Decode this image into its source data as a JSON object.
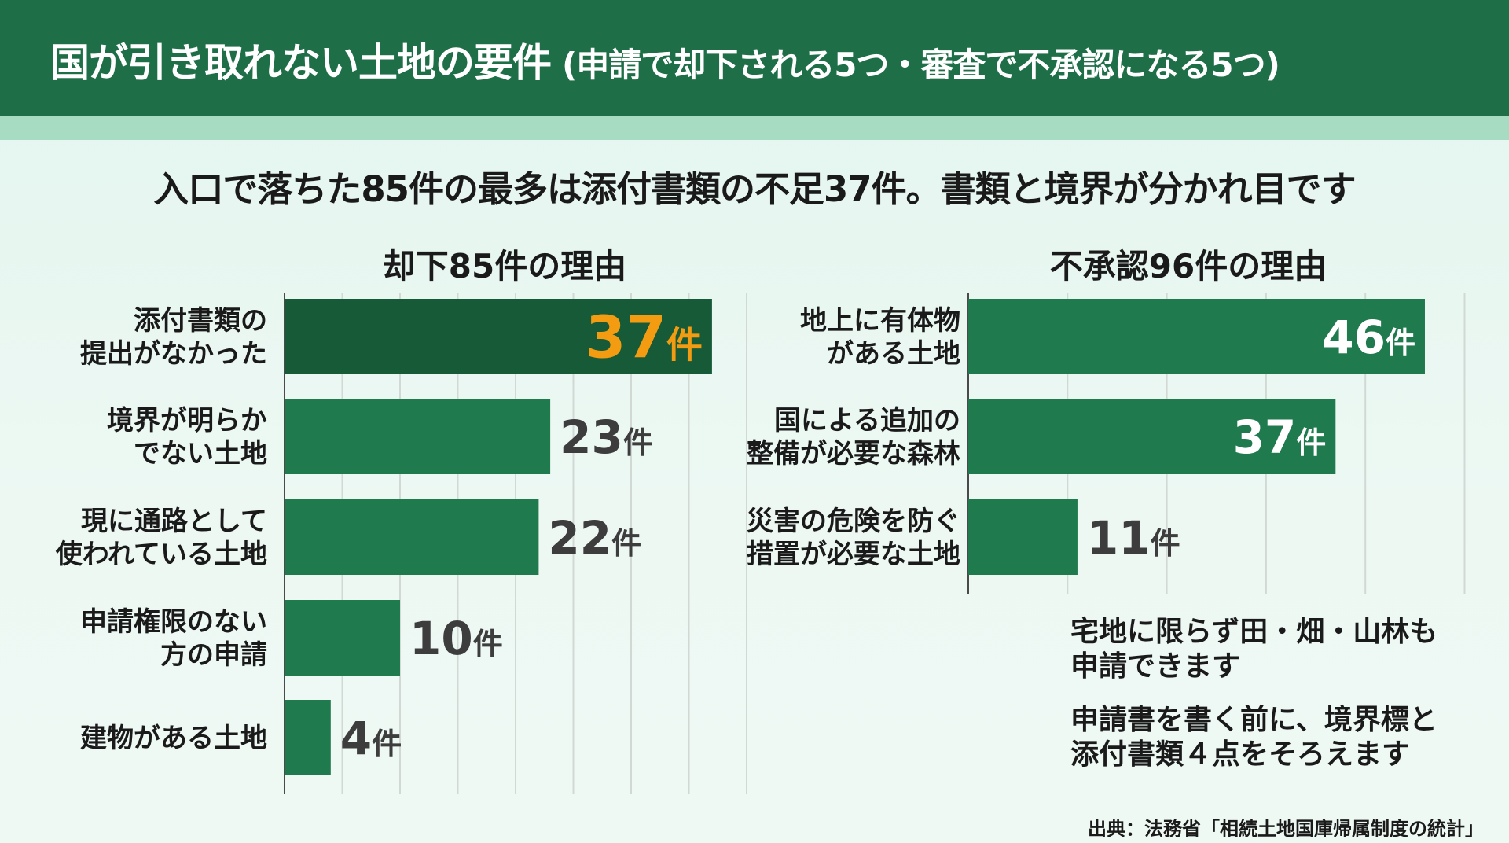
{
  "title": {
    "main": "国が引き取れない土地の要件",
    "sub": "(申請で却下される5つ・審査で不承認になる5つ)"
  },
  "headline": "入口で落ちた85件の最多は添付書類の不足37件。書類と境界が分かれ目です",
  "colors": {
    "header": "#1e6e47",
    "stripe": "#a7dcc3",
    "bar": "#1f7a4d",
    "bar_highlight": "#165a37",
    "highlight_value": "#f39c12",
    "value_text": "#3d3d3d"
  },
  "chart_data": [
    {
      "type": "bar",
      "orientation": "horizontal",
      "title": "却下85件の理由",
      "unit": "件",
      "categories": [
        [
          "添付書類の",
          "提出がなかった"
        ],
        [
          "境界が明らか",
          "でない土地"
        ],
        [
          "現に通路として",
          "使われている土地"
        ],
        [
          "申請権限のない",
          "方の申請"
        ],
        [
          "建物がある土地"
        ]
      ],
      "values": [
        37,
        23,
        22,
        10,
        4
      ],
      "highlight_index": 0,
      "xlim": [
        0,
        40
      ],
      "grid": true
    },
    {
      "type": "bar",
      "orientation": "horizontal",
      "title": "不承認96件の理由",
      "unit": "件",
      "categories": [
        [
          "地上に有体物",
          "がある土地"
        ],
        [
          "国による追加の",
          "整備が必要な森林"
        ],
        [
          "災害の危険を防ぐ",
          "措置が必要な土地"
        ]
      ],
      "values": [
        46,
        37,
        11
      ],
      "xlim": [
        0,
        50
      ],
      "grid": true
    }
  ],
  "notes": [
    [
      "宅地に限らず田・畑・山林も",
      "申請できます"
    ],
    [
      "申請書を書く前に、境界標と",
      "添付書類４点をそろえます"
    ]
  ],
  "source": "出典：法務省「相続土地国庫帰属制度の統計」"
}
